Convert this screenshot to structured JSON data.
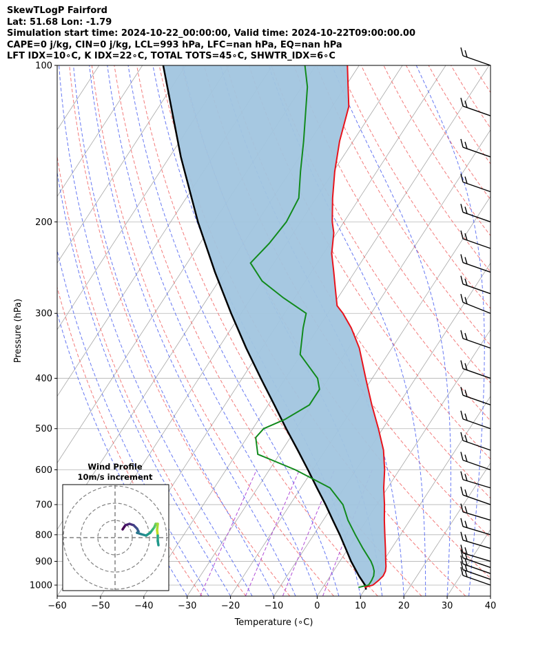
{
  "header": {
    "line1": "SkewTLogP Fairford",
    "line2": "Lat: 51.68   Lon: -1.79",
    "line3": "Simulation start time: 2024-10-22_00:00:00, Valid time: 2024-10-22T09:00:00.00",
    "line4": "CAPE=0 j/kg, CIN=0 j/kg, LCL=993 hPa, LFC=nan hPa, EQ=nan hPa",
    "line5": "LFT IDX=10∘C, K IDX=22∘C, TOTAL TOTS=45∘C, SHWTR_IDX=6∘C"
  },
  "colors": {
    "temperature": "#e8121b",
    "dewpoint": "#118a1c",
    "parcel": "#000000",
    "cape_fill": "#a1c5df",
    "isotherm": "#a6a6a6",
    "dry_adiabat": "#f26b6b",
    "moist_adiabat": "#5468f2",
    "mixing_ratio": "#b04ad6",
    "isobar": "#b3b3b3"
  },
  "chart_data": {
    "type": "line",
    "title": "",
    "xlabel": "Temperature (∘C)",
    "ylabel": "Pressure (hPa)",
    "xlim": [
      -60,
      40
    ],
    "ylim": [
      1050,
      100
    ],
    "y_scale": "log",
    "skew": true,
    "grid": true,
    "x_ticks": [
      "−60",
      "−50",
      "−40",
      "−30",
      "−20",
      "−10",
      "0",
      "10",
      "20",
      "30",
      "40"
    ],
    "y_ticks": [
      "100",
      "200",
      "300",
      "400",
      "500",
      "600",
      "700",
      "800",
      "900",
      "1000"
    ],
    "x_tick_values": [
      -60,
      -50,
      -40,
      -30,
      -20,
      -10,
      0,
      10,
      20,
      30,
      40
    ],
    "y_tick_values": [
      100,
      200,
      300,
      400,
      500,
      600,
      700,
      800,
      900,
      1000
    ],
    "series": [
      {
        "key": "temperature",
        "p": [
          1010,
          1000,
          980,
          960,
          940,
          920,
          900,
          850,
          800,
          750,
          700,
          650,
          600,
          550,
          500,
          450,
          400,
          350,
          320,
          300,
          290,
          270,
          250,
          230,
          210,
          200,
          180,
          160,
          140,
          120,
          110,
          100
        ],
        "t": [
          9.6,
          11.2,
          11.8,
          12.2,
          12.0,
          11.4,
          10.6,
          8.6,
          6.4,
          4.1,
          1.8,
          -0.9,
          -3.4,
          -6.6,
          -11.0,
          -16.1,
          -21.5,
          -27.5,
          -32.4,
          -36.5,
          -39.0,
          -41.8,
          -44.8,
          -48.1,
          -50.7,
          -52.7,
          -56.2,
          -59.7,
          -63.1,
          -66.2,
          -69.3,
          -72.7
        ]
      },
      {
        "key": "dewpoint",
        "p": [
          1010,
          1000,
          980,
          960,
          940,
          920,
          900,
          850,
          800,
          750,
          700,
          650,
          620,
          600,
          560,
          520,
          500,
          480,
          450,
          420,
          400,
          360,
          320,
          300,
          280,
          260,
          240,
          220,
          200,
          180,
          160,
          140,
          110,
          100
        ],
        "t": [
          8.2,
          10.2,
          10.2,
          10.0,
          9.4,
          8.4,
          7.2,
          3.4,
          -0.4,
          -4.3,
          -7.8,
          -13.3,
          -19.6,
          -24.0,
          -35.0,
          -38.0,
          -37.5,
          -34.0,
          -30.5,
          -30.5,
          -32.6,
          -40.2,
          -43.5,
          -45.0,
          -52.6,
          -60.0,
          -65.4,
          -64.0,
          -63.3,
          -64.0,
          -67.6,
          -71.4,
          -78.7,
          -82.5
        ]
      },
      {
        "key": "parcel",
        "p": [
          1020,
          1000,
          960,
          900,
          850,
          800,
          750,
          700,
          650,
          600,
          550,
          500,
          450,
          400,
          350,
          300,
          250,
          200,
          150,
          100
        ],
        "t": [
          10.3,
          9.4,
          6.6,
          2.6,
          -0.6,
          -4.0,
          -7.8,
          -11.8,
          -16.3,
          -21.1,
          -26.4,
          -32.3,
          -38.6,
          -45.7,
          -53.6,
          -62.3,
          -72.2,
          -83.7,
          -97.4,
          -115.2
        ]
      }
    ],
    "shaded_region": "area between temperature and parcel curves",
    "wind_barbs": {
      "p": [
        1000,
        975,
        950,
        925,
        900,
        850,
        800,
        750,
        700,
        650,
        600,
        550,
        500,
        450,
        400,
        350,
        300,
        275,
        250,
        225,
        200,
        175,
        150,
        125,
        100
      ],
      "tail": [
        2,
        2,
        2,
        2,
        1,
        1,
        1,
        1,
        2,
        1,
        2,
        2,
        2,
        2,
        2,
        2,
        3,
        2,
        2,
        2,
        2,
        2,
        2,
        2,
        2
      ]
    },
    "inset": {
      "title": "Wind Profile",
      "subtitle": "10m/s increment",
      "type": "hodograph",
      "rings": [
        1,
        2,
        3
      ]
    }
  }
}
